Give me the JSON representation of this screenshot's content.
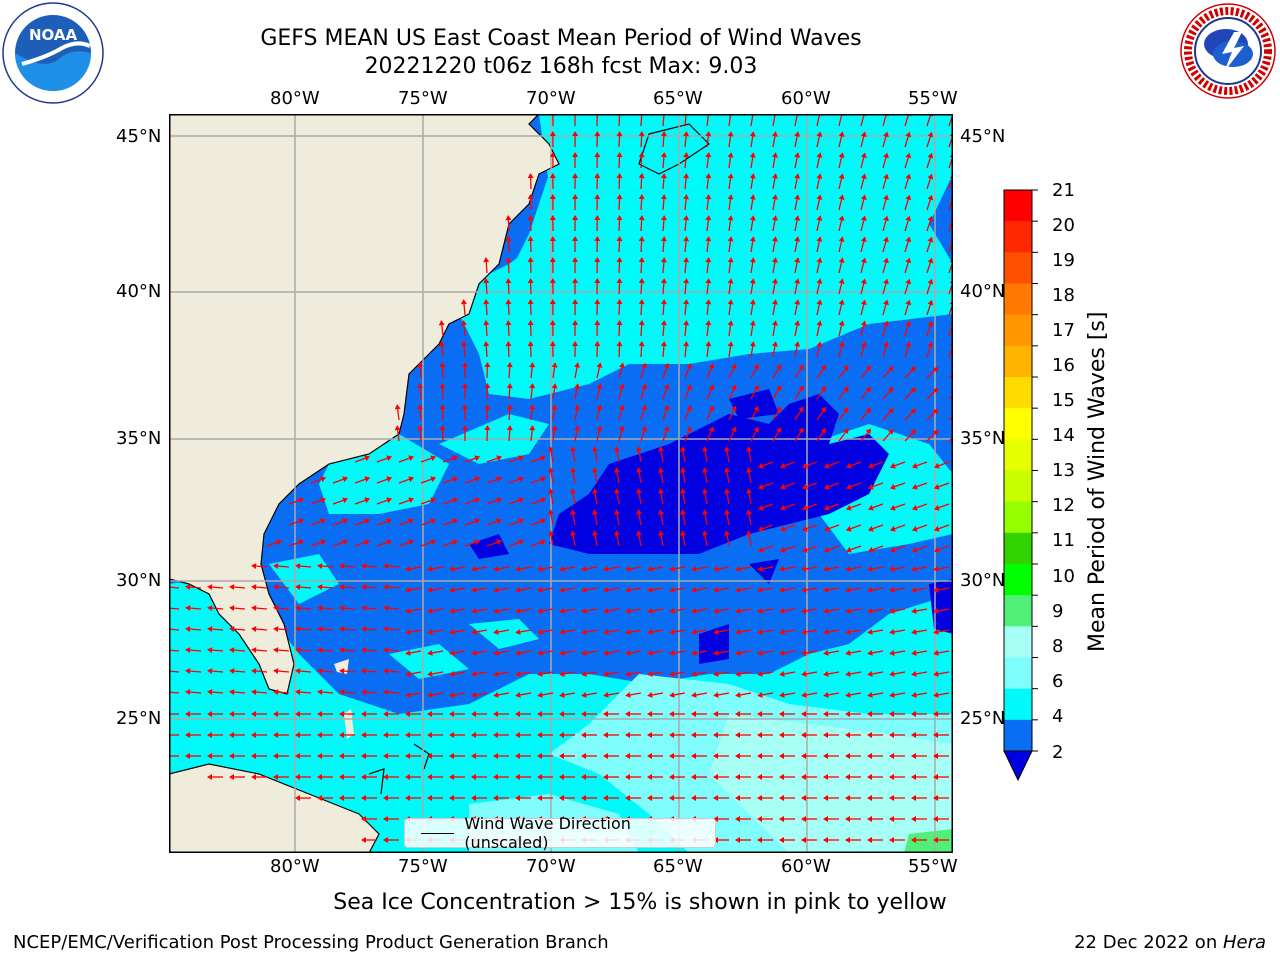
{
  "header": {
    "title_line1": "GEFS MEAN US East Coast Mean Period of Wind Waves",
    "title_line2": "20221220 t06z 168h fcst   Max: 9.03"
  },
  "logos": {
    "noaa": {
      "text": "NOAA",
      "ring_text": "NATIONAL OCEANIC AND ATMOSPHERIC ADMINISTRATION · U.S. DEPARTMENT OF COMMERCE"
    },
    "nws": {
      "ring_text": "NATIONAL WEATHER SERVICE"
    }
  },
  "map": {
    "lon_ticks_top": [
      "80°W",
      "75°W",
      "70°W",
      "65°W",
      "60°W",
      "55°W"
    ],
    "lon_ticks_bottom": [
      "80°W",
      "75°W",
      "70°W",
      "65°W",
      "60°W",
      "55°W"
    ],
    "lat_ticks_left": [
      "45°N",
      "40°N",
      "35°N",
      "30°N",
      "25°N"
    ],
    "lat_ticks_right": [
      "45°N",
      "40°N",
      "35°N",
      "30°N",
      "25°N"
    ],
    "legend_label": "Wind Wave Direction (unscaled)",
    "colors": {
      "land": "#efecdc",
      "ocean_2_4": "#0a6ef5",
      "ocean_lt2": "#0000e0",
      "ocean_4_6": "#00fafa",
      "ocean_6_8": "#7ffcfc",
      "ocean_8_9": "#a5fff4",
      "ocean_9_10": "#50f078",
      "arrow": "#ff0000",
      "grid": "#aaaaaa"
    }
  },
  "colorbar": {
    "label": "Mean Period of Wind Waves [s]",
    "ticks": [
      "21",
      "20",
      "19",
      "18",
      "17",
      "16",
      "15",
      "14",
      "13",
      "12",
      "11",
      "10",
      "9",
      "8",
      "6",
      "4",
      "2"
    ],
    "colors": [
      "#ff0000",
      "#ff2800",
      "#ff5000",
      "#ff7800",
      "#ff9600",
      "#ffb400",
      "#ffdc00",
      "#ffff00",
      "#e6ff00",
      "#c8ff00",
      "#96ff00",
      "#32d200",
      "#00ff00",
      "#50f078",
      "#a5fff4",
      "#7ffcfc",
      "#00fafa",
      "#0a6ef5"
    ],
    "extend_color": "#0000e0"
  },
  "footer": {
    "subtitle": "Sea Ice Concentration > 15% is shown in pink to yellow",
    "credit_left": "NCEP/EMC/Verification Post Processing Product Generation Branch",
    "credit_date": "22 Dec 2022 on ",
    "credit_host": "Hera"
  }
}
